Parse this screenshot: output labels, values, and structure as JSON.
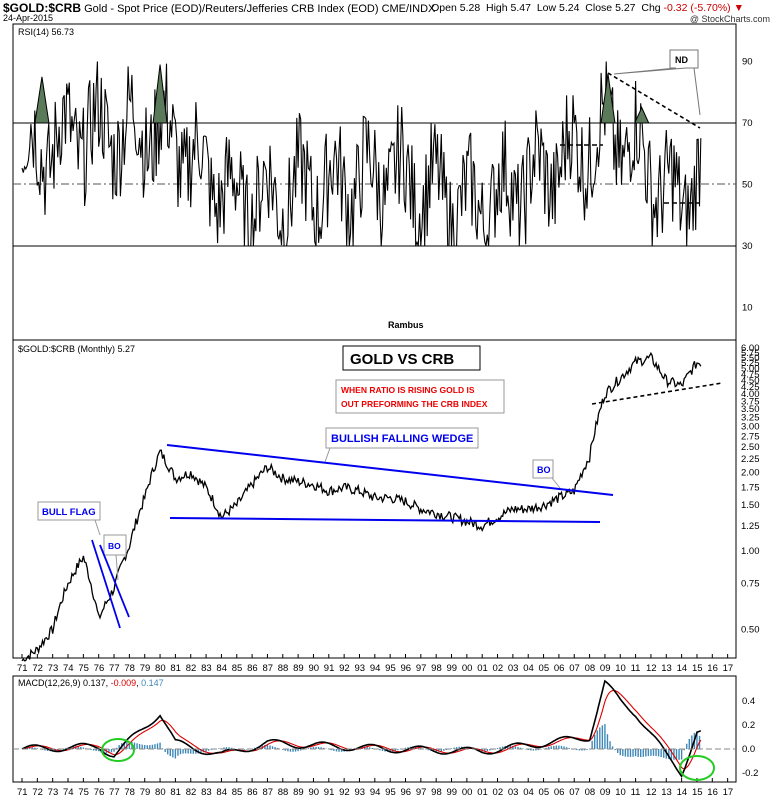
{
  "header": {
    "symbol": "$GOLD:$CRB",
    "description": "Gold - Spot Price (EOD)/Reuters/Jefferies CRB Index (EOD) CME/INDX",
    "date": "24-Apr-2015",
    "open_label": "Open",
    "open": "5.28",
    "high_label": "High",
    "high": "5.47",
    "low_label": "Low",
    "low": "5.24",
    "close_label": "Close",
    "close": "5.27",
    "chg_label": "Chg",
    "chg": "-0.32 (-5.70%)",
    "credit": "@ StockCharts.com"
  },
  "colors": {
    "price": "#000000",
    "annotation_blue": "#0000ee",
    "annotation_red": "#ee0000",
    "macd_signal": "#dd0000",
    "histogram": "#3e88b8",
    "rsi_fill": "#5a7a5a",
    "circle": "#22cc22"
  },
  "rsi_panel": {
    "legend": "RSI(14) 56.73",
    "y_ticks": [
      "90",
      "70",
      "50",
      "30",
      "10"
    ],
    "note": "ND",
    "author": "Rambus"
  },
  "main_panel": {
    "legend": "$GOLD:$CRB (Monthly) 5.27",
    "title": "GOLD VS CRB",
    "red_note_line1": "WHEN RATIO IS RISING GOLD IS",
    "red_note_line2": "OUT PREFORMING THE CRB INDEX",
    "wedge_label": "BULLISH FALLING WEDGE",
    "flag_label": "BULL FLAG",
    "bo_label_1": "BO",
    "bo_label_2": "BO",
    "y_ticks": [
      "6.00",
      "5.75",
      "5.50",
      "5.25",
      "5.00",
      "4.75",
      "4.50",
      "4.25",
      "4.00",
      "3.75",
      "3.50",
      "3.25",
      "3.00",
      "2.75",
      "2.50",
      "2.25",
      "2.00",
      "1.75",
      "1.50",
      "1.25",
      "1.00",
      "0.75",
      "0.50"
    ]
  },
  "x_ticks": [
    "71",
    "72",
    "73",
    "74",
    "75",
    "76",
    "77",
    "78",
    "79",
    "80",
    "81",
    "82",
    "83",
    "84",
    "85",
    "86",
    "87",
    "88",
    "89",
    "90",
    "91",
    "92",
    "93",
    "94",
    "95",
    "96",
    "97",
    "98",
    "99",
    "00",
    "01",
    "02",
    "03",
    "04",
    "05",
    "06",
    "07",
    "08",
    "09",
    "10",
    "11",
    "12",
    "13",
    "14",
    "15",
    "16",
    "17"
  ],
  "macd_panel": {
    "legend_name": "MACD(12,26,9)",
    "macd": "0.137",
    "signal": "-0.009",
    "hist": "0.147",
    "y_ticks": [
      "0.4",
      "0.2",
      "0.0",
      "-0.2"
    ]
  },
  "chart_data": {
    "type": "line",
    "title": "GOLD VS CRB",
    "series": [
      {
        "name": "$GOLD:$CRB (Monthly)",
        "x": [
          1971,
          1972,
          1973,
          1974,
          1975,
          1976,
          1977,
          1978,
          1979,
          1980,
          1981,
          1982,
          1983,
          1984,
          1985,
          1986,
          1987,
          1988,
          1989,
          1990,
          1991,
          1992,
          1993,
          1994,
          1995,
          1996,
          1997,
          1998,
          1999,
          2000,
          2001,
          2002,
          2003,
          2004,
          2005,
          2006,
          2007,
          2008,
          2009,
          2010,
          2011,
          2012,
          2013,
          2014,
          2015
        ],
        "values": [
          0.38,
          0.42,
          0.5,
          0.75,
          0.95,
          0.55,
          0.72,
          1.05,
          1.6,
          2.4,
          1.9,
          2.0,
          1.75,
          1.35,
          1.5,
          1.8,
          2.1,
          1.9,
          1.85,
          1.8,
          1.7,
          1.75,
          1.7,
          1.6,
          1.6,
          1.55,
          1.45,
          1.4,
          1.35,
          1.3,
          1.25,
          1.35,
          1.45,
          1.45,
          1.5,
          1.6,
          1.7,
          2.3,
          4.0,
          4.6,
          5.3,
          5.5,
          4.5,
          4.3,
          5.27
        ]
      },
      {
        "name": "RSI(14)",
        "x": [
          1971,
          1975,
          1980,
          1985,
          1990,
          1995,
          2000,
          2005,
          2009,
          2011,
          2013,
          2014,
          2015
        ],
        "values": [
          70,
          85,
          88,
          35,
          45,
          55,
          30,
          55,
          86,
          75,
          40,
          35,
          56.73
        ]
      },
      {
        "name": "MACD(12,26,9)",
        "x": [
          1971,
          1976,
          1977,
          1980,
          1981,
          1984,
          1987,
          1995,
          2001,
          2008,
          2009,
          2010,
          2011,
          2013,
          2014,
          2015
        ],
        "values": [
          0.0,
          0.02,
          -0.05,
          0.3,
          0.05,
          -0.05,
          0.05,
          0.0,
          -0.02,
          0.1,
          0.55,
          0.4,
          0.3,
          -0.05,
          -0.2,
          0.137
        ]
      }
    ],
    "ylim_rsi": [
      0,
      100
    ],
    "ylim_price": [
      0.4,
      6.0
    ],
    "ylim_macd": [
      -0.25,
      0.55
    ]
  }
}
